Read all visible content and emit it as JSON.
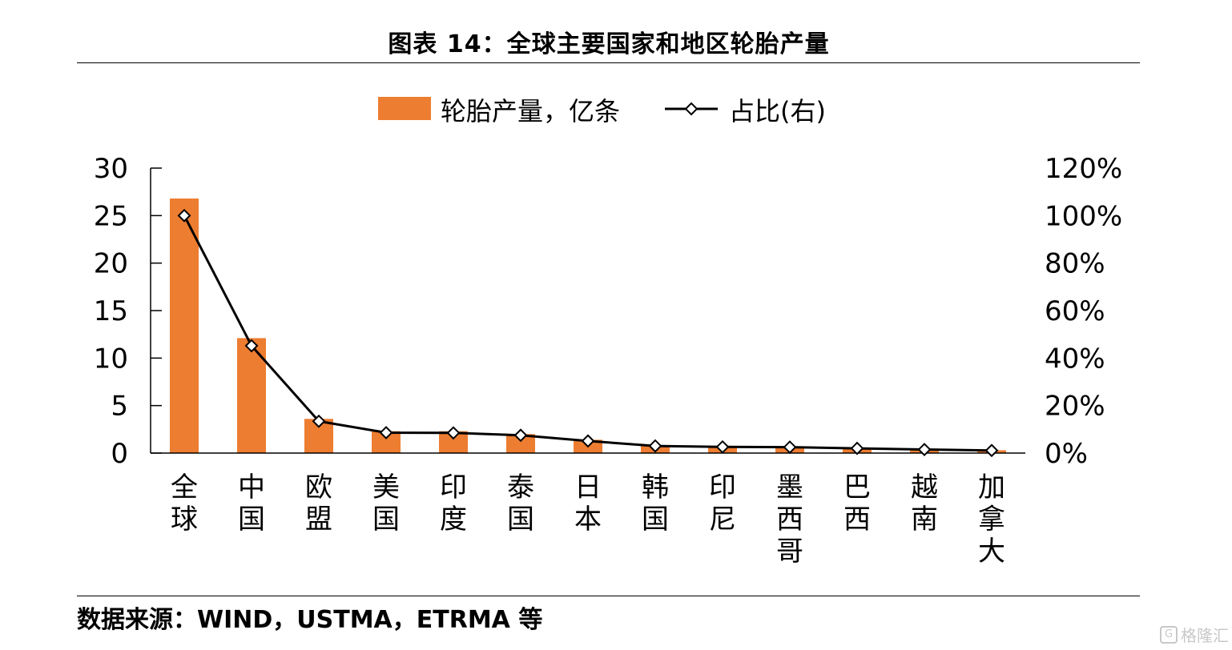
{
  "title": "图表 14：全球主要国家和地区轮胎产量",
  "source": "数据来源：WIND，USTMA，ETRMA 等",
  "watermark": "格隆汇",
  "watermark_icon": "G",
  "colors": {
    "bar": "#ED7D31",
    "line": "#000000",
    "marker_fill": "#ffffff"
  },
  "chart_data": {
    "type": "bar",
    "categories": [
      "全球",
      "中国",
      "欧盟",
      "美国",
      "印度",
      "泰国",
      "日本",
      "韩国",
      "印尼",
      "墨西哥",
      "巴西",
      "越南",
      "加拿大"
    ],
    "series": [
      {
        "name": "轮胎产量，亿条",
        "type": "bar",
        "axis": "left",
        "values": [
          26.8,
          12.1,
          3.6,
          2.3,
          2.3,
          2.0,
          1.4,
          0.8,
          0.7,
          0.7,
          0.5,
          0.4,
          0.3
        ]
      },
      {
        "name": "占比(右)",
        "type": "line",
        "axis": "right",
        "marker": "diamond",
        "values": [
          100,
          45.2,
          13.4,
          8.6,
          8.5,
          7.5,
          5.1,
          3.0,
          2.6,
          2.5,
          2.0,
          1.5,
          1.1
        ]
      }
    ],
    "y_left": {
      "min": 0,
      "max": 30,
      "ticks": [
        "0",
        "5",
        "10",
        "15",
        "20",
        "25",
        "30"
      ]
    },
    "y_right": {
      "min": 0,
      "max": 120,
      "ticks": [
        "0%",
        "20%",
        "40%",
        "60%",
        "80%",
        "100%",
        "120%"
      ]
    },
    "grid": false,
    "legend_position": "top-center"
  }
}
